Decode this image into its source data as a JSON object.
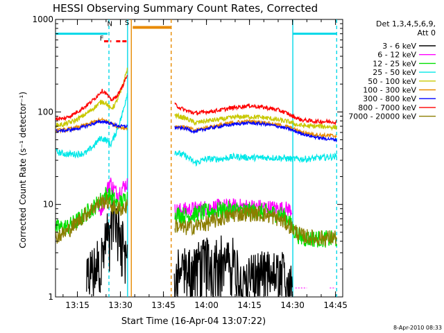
{
  "chart_data": {
    "type": "line",
    "title": "HESSI Observing Summary Count Rates, Corrected",
    "xlabel": "Start Time (16-Apr-04 13:07:22)",
    "ylabel": "Corrected Count Rate (s⁻¹ detector⁻¹)",
    "y_scale": "log",
    "xlim_minutes": [
      787.37,
      887.5
    ],
    "ylim": [
      1,
      1000
    ],
    "x_ticks": [
      {
        "t": 795,
        "label": "13:15"
      },
      {
        "t": 810,
        "label": "13:30"
      },
      {
        "t": 825,
        "label": "13:45"
      },
      {
        "t": 840,
        "label": "14:00"
      },
      {
        "t": 855,
        "label": "14:15"
      },
      {
        "t": 870,
        "label": "14:30"
      },
      {
        "t": 885,
        "label": "14:45"
      }
    ],
    "y_ticks": [
      {
        "v": 1,
        "label": "1"
      },
      {
        "v": 10,
        "label": "10"
      },
      {
        "v": 100,
        "label": "100"
      },
      {
        "v": 1000,
        "label": "1000"
      }
    ],
    "legend": {
      "header": [
        "Det 1,3,4,5,6,9,",
        "Att 0"
      ],
      "placement": "right"
    },
    "timestamp": "8-Apr-2010 08:33",
    "flag_labels": [
      {
        "text": "F",
        "color": "#ff0000",
        "t": 803.5,
        "v": 590
      },
      {
        "text": "N",
        "color": "#00d8e8",
        "t": 806.3,
        "v": 850
      },
      {
        "text": "S",
        "color": "#e88a00",
        "t": 812.3,
        "v": 870
      }
    ],
    "flag_bars": [
      {
        "name": "saa",
        "color": "#00d8e8",
        "t0": 787.4,
        "t1": 805.5,
        "v": 700
      },
      {
        "name": "saa",
        "color": "#00d8e8",
        "t0": 870.2,
        "t1": 885.5,
        "v": 700
      },
      {
        "name": "flare",
        "color": "#ff0000",
        "t0": 804.3,
        "t1": 806.8,
        "v": 580
      },
      {
        "name": "flare",
        "color": "#ff0000",
        "t0": 808.5,
        "t1": 812.8,
        "v": 580
      },
      {
        "name": "saa-orange",
        "color": "#e88a00",
        "t0": 814.3,
        "t1": 827.5,
        "v": 820
      }
    ],
    "vlines": [
      {
        "t": 806.0,
        "color": "#00d8e8",
        "style": "dashed"
      },
      {
        "t": 812.5,
        "color": "#00d8e8",
        "style": "solid"
      },
      {
        "t": 813.8,
        "color": "#e88a00",
        "style": "solid"
      },
      {
        "t": 827.7,
        "color": "#e88a00",
        "style": "dashed"
      },
      {
        "t": 870.1,
        "color": "#00d8e8",
        "style": "solid"
      },
      {
        "t": 885.4,
        "color": "#00d8e8",
        "style": "dashed"
      }
    ],
    "series": [
      {
        "name": "3 - 6 keV",
        "color": "#000000",
        "noise": 0.45,
        "sparse": true,
        "segments": [
          [
            [
              798.2,
              2.2
            ],
            [
              801.3,
              2.2
            ],
            [
              802.0,
              3.5
            ],
            [
              803.0,
              3.0
            ]
          ],
          [
            [
              803.3,
              3.2
            ],
            [
              806.5,
              6.5
            ],
            [
              807.0,
              12
            ],
            [
              808.5,
              8
            ],
            [
              809.5,
              6
            ],
            [
              811.0,
              5
            ],
            [
              812.4,
              3.0
            ]
          ],
          [
            [
              828.8,
              1.5
            ],
            [
              830.0,
              2.2
            ],
            [
              834.0,
              2.4
            ],
            [
              838.0,
              2.6
            ],
            [
              842.0,
              3.0
            ],
            [
              845.0,
              3.2
            ],
            [
              847.0,
              2.5
            ],
            [
              849.0,
              3.0
            ],
            [
              851.0,
              2.0
            ],
            [
              853.0,
              2.0
            ],
            [
              869.9,
              2.0
            ]
          ]
        ]
      },
      {
        "name": "6 - 12 keV",
        "color": "#ff00ff",
        "noise": 0.2,
        "segments": [
          [
            [
              802.5,
              8
            ],
            [
              804.5,
              11
            ],
            [
              806.2,
              18
            ],
            [
              807.5,
              15
            ],
            [
              809.0,
              13
            ],
            [
              810.5,
              15
            ],
            [
              812.4,
              17
            ]
          ],
          [
            [
              829.0,
              8.5
            ],
            [
              834.0,
              8.8
            ],
            [
              840.0,
              9.2
            ],
            [
              846.0,
              9.5
            ],
            [
              852.0,
              9.5
            ],
            [
              858.0,
              9.4
            ],
            [
              864.0,
              9.1
            ],
            [
              869.9,
              8.8
            ]
          ]
        ],
        "extra": [
          [
            [
              871.0,
              1.25
            ],
            [
              875.0,
              1.25
            ]
          ],
          [
            [
              883.0,
              1.25
            ],
            [
              885.0,
              1.25
            ]
          ]
        ]
      },
      {
        "name": "12 - 25 keV",
        "color": "#00e000",
        "noise": 0.22,
        "segments": [
          [
            [
              787.5,
              5.5
            ],
            [
              792.0,
              5.8
            ],
            [
              796.0,
              7.0
            ],
            [
              799.0,
              8.5
            ],
            [
              801.0,
              9.5
            ],
            [
              803.0,
              11
            ],
            [
              805.0,
              13
            ],
            [
              807.0,
              12
            ],
            [
              809.0,
              10
            ],
            [
              811.0,
              11
            ],
            [
              812.4,
              12
            ]
          ],
          [
            [
              829.0,
              8.0
            ],
            [
              833.0,
              7.5
            ],
            [
              837.0,
              8.0
            ],
            [
              842.0,
              8.5
            ],
            [
              848.0,
              8.8
            ],
            [
              854.0,
              8.5
            ],
            [
              860.0,
              8.3
            ],
            [
              866.0,
              7.8
            ],
            [
              868.5,
              7.0
            ],
            [
              869.9,
              5.5
            ],
            [
              873.0,
              4.3
            ],
            [
              885.4,
              4.2
            ]
          ]
        ]
      },
      {
        "name": "25 - 50 keV",
        "color": "#00e8e8",
        "noise": 0.08,
        "segments": [
          [
            [
              787.5,
              37
            ],
            [
              791.0,
              35
            ],
            [
              795.0,
              35
            ],
            [
              798.0,
              36
            ],
            [
              801.0,
              44
            ],
            [
              803.0,
              52
            ],
            [
              805.0,
              50
            ],
            [
              806.5,
              44
            ],
            [
              808.0,
              55
            ],
            [
              810.5,
              90
            ],
            [
              812.4,
              160
            ]
          ],
          [
            [
              829.0,
              37
            ],
            [
              833.0,
              33
            ],
            [
              836.0,
              28
            ],
            [
              840.0,
              31
            ],
            [
              845.0,
              31
            ],
            [
              850.0,
              33
            ],
            [
              855.0,
              32
            ],
            [
              860.0,
              32
            ],
            [
              865.0,
              32
            ],
            [
              870.0,
              31
            ],
            [
              875.0,
              31
            ],
            [
              880.0,
              32
            ],
            [
              885.4,
              33
            ]
          ]
        ]
      },
      {
        "name": "50 - 100 keV",
        "color": "#c8c800",
        "noise": 0.06,
        "segments": [
          [
            [
              787.5,
              72
            ],
            [
              790.0,
              73
            ],
            [
              794.0,
              80
            ],
            [
              798.0,
              95
            ],
            [
              801.0,
              112
            ],
            [
              803.5,
              130
            ],
            [
              805.0,
              125
            ],
            [
              806.5,
              108
            ],
            [
              808.0,
              118
            ],
            [
              810.0,
              160
            ],
            [
              812.4,
              290
            ]
          ],
          [
            [
              829.0,
              92
            ],
            [
              833.0,
              85
            ],
            [
              836.0,
              76
            ],
            [
              840.0,
              80
            ],
            [
              845.0,
              83
            ],
            [
              850.0,
              88
            ],
            [
              855.0,
              89
            ],
            [
              860.0,
              87
            ],
            [
              865.0,
              82
            ],
            [
              869.0,
              78
            ],
            [
              872.0,
              72
            ],
            [
              876.0,
              70
            ],
            [
              880.0,
              70
            ],
            [
              885.4,
              68
            ]
          ]
        ]
      },
      {
        "name": "100 - 300 keV",
        "color": "#e88a00",
        "noise": 0.05,
        "segments": [
          [
            [
              787.5,
              63
            ],
            [
              791.0,
              64
            ],
            [
              795.0,
              68
            ],
            [
              799.0,
              74
            ],
            [
              802.0,
              80
            ],
            [
              804.0,
              82
            ],
            [
              806.0,
              78
            ],
            [
              808.0,
              72
            ],
            [
              810.0,
              68
            ],
            [
              812.4,
              67
            ]
          ],
          [
            [
              829.0,
              70
            ],
            [
              833.0,
              68
            ],
            [
              836.0,
              63
            ],
            [
              840.0,
              68
            ],
            [
              845.0,
              72
            ],
            [
              850.0,
              77
            ],
            [
              855.0,
              79
            ],
            [
              860.0,
              77
            ],
            [
              865.0,
              72
            ],
            [
              869.0,
              68
            ],
            [
              872.0,
              62
            ],
            [
              876.0,
              58
            ],
            [
              880.0,
              56
            ],
            [
              885.4,
              55
            ]
          ]
        ]
      },
      {
        "name": "300 - 800 keV",
        "color": "#0000ff",
        "noise": 0.04,
        "segments": [
          [
            [
              787.5,
              62
            ],
            [
              791.0,
              63
            ],
            [
              795.0,
              66
            ],
            [
              799.0,
              72
            ],
            [
              802.0,
              77
            ],
            [
              804.0,
              79
            ],
            [
              806.0,
              76
            ],
            [
              808.0,
              72
            ],
            [
              810.0,
              70
            ],
            [
              812.4,
              70
            ]
          ],
          [
            [
              829.0,
              68
            ],
            [
              833.0,
              66
            ],
            [
              836.0,
              61
            ],
            [
              840.0,
              66
            ],
            [
              845.0,
              70
            ],
            [
              850.0,
              74
            ],
            [
              855.0,
              76
            ],
            [
              860.0,
              74
            ],
            [
              865.0,
              70
            ],
            [
              869.0,
              65
            ],
            [
              872.0,
              60
            ],
            [
              876.0,
              55
            ],
            [
              880.0,
              52
            ],
            [
              885.4,
              50
            ]
          ]
        ]
      },
      {
        "name": "800 - 7000 keV",
        "color": "#ff0000",
        "noise": 0.05,
        "segments": [
          [
            [
              787.5,
              85
            ],
            [
              790.0,
              84
            ],
            [
              793.0,
              92
            ],
            [
              797.0,
              110
            ],
            [
              800.0,
              130
            ],
            [
              802.0,
              150
            ],
            [
              803.5,
              170
            ],
            [
              805.0,
              160
            ],
            [
              806.5,
              135
            ],
            [
              808.0,
              140
            ],
            [
              810.0,
              170
            ],
            [
              812.4,
              250
            ]
          ],
          [
            [
              829.0,
              120
            ],
            [
              831.0,
              110
            ],
            [
              833.0,
              103
            ],
            [
              836.0,
              97
            ],
            [
              840.0,
              100
            ],
            [
              845.0,
              105
            ],
            [
              850.0,
              112
            ],
            [
              855.0,
              117
            ],
            [
              860.0,
              112
            ],
            [
              865.0,
              105
            ],
            [
              868.0,
              97
            ],
            [
              870.0,
              90
            ],
            [
              873.0,
              82
            ],
            [
              878.0,
              79
            ],
            [
              885.4,
              78
            ]
          ]
        ]
      },
      {
        "name": "7000 - 20000 keV",
        "color": "#8b7d00",
        "noise": 0.2,
        "segments": [
          [
            [
              787.5,
              4.5
            ],
            [
              791.0,
              5.0
            ],
            [
              794.0,
              6.0
            ],
            [
              797.0,
              7.5
            ],
            [
              799.0,
              8.3
            ],
            [
              801.0,
              9.5
            ],
            [
              803.0,
              10.5
            ],
            [
              805.0,
              11
            ],
            [
              806.5,
              10
            ],
            [
              808.0,
              9
            ],
            [
              810.0,
              9
            ],
            [
              812.4,
              9.5
            ]
          ],
          [
            [
              829.0,
              6.0
            ],
            [
              832.0,
              5.5
            ],
            [
              836.0,
              5.8
            ],
            [
              840.0,
              6.2
            ],
            [
              845.0,
              7.0
            ],
            [
              850.0,
              7.8
            ],
            [
              855.0,
              8.0
            ],
            [
              860.0,
              7.8
            ],
            [
              865.0,
              7.0
            ],
            [
              868.0,
              6.2
            ],
            [
              870.0,
              5.5
            ],
            [
              873.0,
              4.6
            ],
            [
              878.0,
              4.3
            ],
            [
              885.4,
              4.4
            ]
          ]
        ]
      }
    ]
  }
}
